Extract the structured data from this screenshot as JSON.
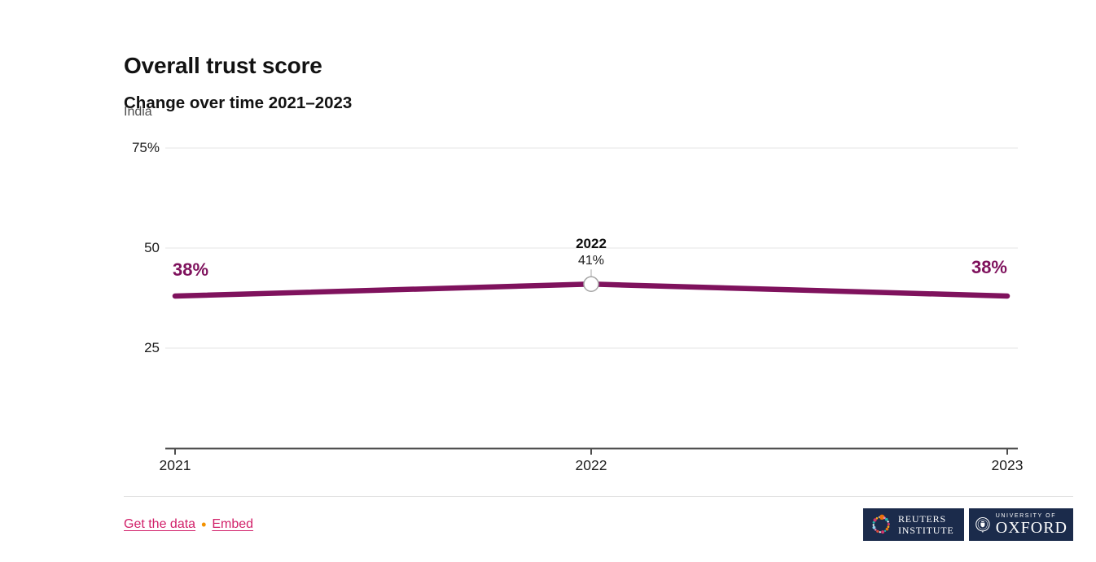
{
  "header": {
    "title": "Overall trust score",
    "subtitle": "Change over time 2021–2023",
    "country": "India"
  },
  "chart_data": {
    "type": "line",
    "title": "Overall trust score",
    "subtitle": "Change over time 2021–2023",
    "region": "India",
    "categories": [
      "2021",
      "2022",
      "2023"
    ],
    "series": [
      {
        "name": "Overall trust score",
        "color": "#7f125d",
        "values": [
          38,
          41,
          38
        ]
      }
    ],
    "ylim": [
      0,
      80
    ],
    "yticks": [
      {
        "value": 75,
        "label": "75%"
      },
      {
        "value": 50,
        "label": "50"
      },
      {
        "value": 25,
        "label": "25"
      }
    ],
    "grid": "horizontal",
    "legend": "none",
    "annotations": {
      "start_label": "38%",
      "end_label": "38%",
      "hover_index": 1,
      "hover_year": "2022",
      "hover_value": "41%"
    }
  },
  "footer": {
    "get_data_label": "Get the data",
    "separator": "•",
    "embed_label": "Embed",
    "reuters_logo": {
      "line1": "REUTERS",
      "line2": "INSTITUTE"
    },
    "oxford_logo": {
      "line1": "UNIVERSITY OF",
      "line2": "OXFORD"
    }
  },
  "colors": {
    "accent_line": "#7f125d",
    "link": "#d12069",
    "separator_bullet": "#f39200",
    "badge_navy": "#1b2b4b",
    "gridline": "#e4e4e4",
    "axis": "#4d4d4d"
  }
}
